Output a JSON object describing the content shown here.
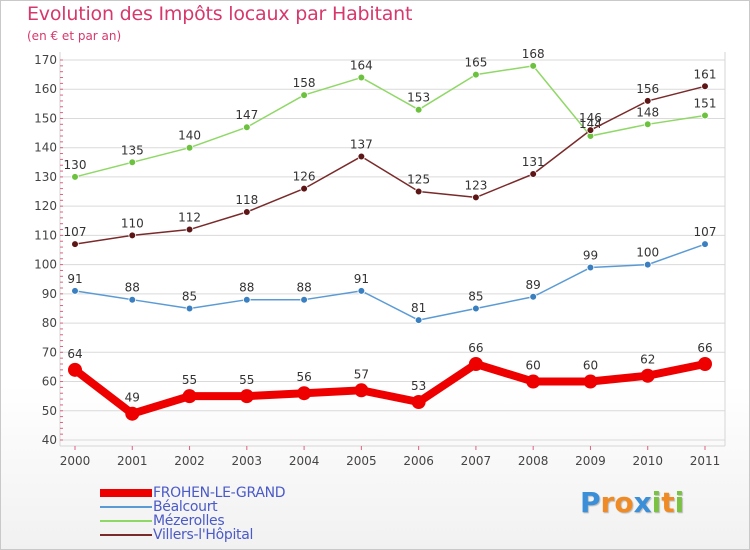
{
  "title": "Evolution des Impôts locaux par Habitant",
  "subtitle": "(en € et par an)",
  "brand": {
    "letters": [
      "P",
      "r",
      "o",
      "x",
      "i",
      "t",
      "i"
    ],
    "colors": [
      "#3a8fd8",
      "#f08a24",
      "#f08a24",
      "#3a8fd8",
      "#7cc242",
      "#f08a24",
      "#7cc242"
    ]
  },
  "chart_data": {
    "type": "line",
    "title": "Evolution des Impôts locaux par Habitant",
    "subtitle": "(en € et par an)",
    "xlabel": "",
    "ylabel": "",
    "ylim": [
      40,
      170
    ],
    "yticks": [
      40,
      50,
      60,
      70,
      80,
      90,
      100,
      110,
      120,
      130,
      140,
      150,
      160,
      170
    ],
    "x": [
      "2000",
      "2001",
      "2002",
      "2003",
      "2004",
      "2005",
      "2006",
      "2007",
      "2008",
      "2009",
      "2010",
      "2011"
    ],
    "grid": true,
    "legend_position": "bottom-left",
    "series": [
      {
        "name": "FROHEN-LE-GRAND",
        "color": "#ee0000",
        "marker_color": "#ee0000",
        "emphasis": "thick",
        "values": [
          64,
          49,
          55,
          55,
          56,
          57,
          53,
          66,
          60,
          60,
          62,
          66
        ]
      },
      {
        "name": "Béalcourt",
        "color": "#5b9bd5",
        "marker_color": "#3a7fc0",
        "emphasis": "thin",
        "values": [
          91,
          88,
          85,
          88,
          88,
          91,
          81,
          85,
          89,
          99,
          100,
          107
        ]
      },
      {
        "name": "Mézerolles",
        "color": "#8fd866",
        "marker_color": "#6cc23e",
        "emphasis": "thin",
        "values": [
          130,
          135,
          140,
          147,
          158,
          164,
          153,
          165,
          168,
          144,
          148,
          151
        ]
      },
      {
        "name": "Villers-l'Hôpital",
        "color": "#7a2a2a",
        "marker_color": "#5e1515",
        "emphasis": "thin",
        "values": [
          107,
          110,
          112,
          118,
          126,
          137,
          125,
          123,
          131,
          146,
          156,
          161
        ]
      }
    ]
  }
}
